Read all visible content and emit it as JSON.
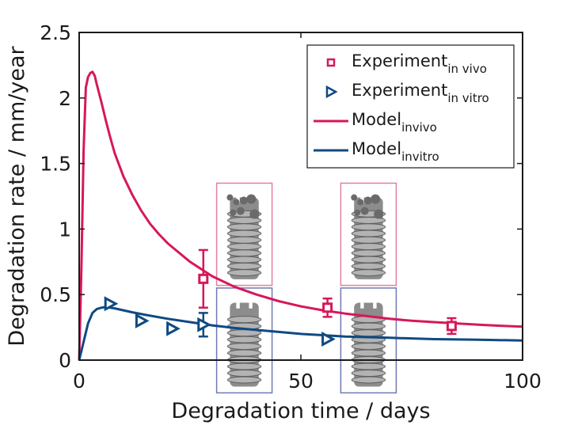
{
  "chart_data": {
    "type": "line",
    "title": "",
    "xlabel": "Degradation time / days",
    "ylabel": "Degradation rate / mm/year",
    "xlim": [
      0,
      100
    ],
    "ylim": [
      0,
      2.5
    ],
    "xticks": [
      0,
      50,
      100
    ],
    "yticks": [
      0,
      0.5,
      1,
      1.5,
      2,
      2.5
    ],
    "xtick_labels": [
      "0",
      "50",
      "100"
    ],
    "ytick_labels": [
      "0",
      "0.5",
      "1",
      "1.5",
      "2",
      "2.5"
    ],
    "grid": false,
    "legend_position": "top-right",
    "colors": {
      "in_vivo": "#d6185a",
      "in_vitro": "#0f4a82",
      "inset_vivo_frame": "#e27fa3",
      "inset_vitro_frame": "#6f79b5"
    },
    "series": [
      {
        "name": "Experiment",
        "name_sub": "in vivo",
        "kind": "scatter",
        "marker": "square",
        "color": "#d6185a",
        "points": [
          {
            "x": 28,
            "y": 0.62,
            "err": 0.22
          },
          {
            "x": 56,
            "y": 0.4,
            "err": 0.07
          },
          {
            "x": 84,
            "y": 0.26,
            "err": 0.06
          }
        ]
      },
      {
        "name": "Experiment",
        "name_sub": "in vitro",
        "kind": "scatter",
        "marker": "triangle-right",
        "color": "#0f4a82",
        "points": [
          {
            "x": 7,
            "y": 0.43
          },
          {
            "x": 14,
            "y": 0.3
          },
          {
            "x": 21,
            "y": 0.24
          },
          {
            "x": 28,
            "y": 0.27,
            "err": 0.09
          },
          {
            "x": 56,
            "y": 0.16
          }
        ]
      },
      {
        "name": "Model",
        "name_sub": "invivo",
        "kind": "line",
        "color": "#d6185a",
        "x": [
          0,
          0.5,
          1,
          1.5,
          2,
          2.5,
          3,
          3.5,
          4,
          5,
          6,
          7,
          8,
          10,
          12,
          14,
          16,
          18,
          20,
          25,
          30,
          35,
          40,
          45,
          50,
          55,
          60,
          65,
          70,
          75,
          80,
          85,
          90,
          95,
          100
        ],
        "y": [
          0,
          0.7,
          1.6,
          2.08,
          2.16,
          2.19,
          2.2,
          2.17,
          2.1,
          1.97,
          1.83,
          1.7,
          1.58,
          1.4,
          1.26,
          1.14,
          1.04,
          0.96,
          0.89,
          0.75,
          0.64,
          0.56,
          0.5,
          0.45,
          0.41,
          0.38,
          0.355,
          0.335,
          0.315,
          0.3,
          0.29,
          0.28,
          0.27,
          0.262,
          0.255
        ]
      },
      {
        "name": "Model",
        "name_sub": "invitro",
        "kind": "line",
        "color": "#0f4a82",
        "x": [
          0,
          1,
          2,
          3,
          4,
          5,
          6,
          7,
          8,
          10,
          12,
          15,
          20,
          25,
          30,
          35,
          40,
          45,
          50,
          55,
          60,
          70,
          80,
          90,
          100
        ],
        "y": [
          0,
          0.14,
          0.28,
          0.36,
          0.39,
          0.4,
          0.405,
          0.4,
          0.395,
          0.38,
          0.365,
          0.345,
          0.315,
          0.29,
          0.265,
          0.245,
          0.23,
          0.215,
          0.2,
          0.19,
          0.18,
          0.17,
          0.16,
          0.155,
          0.15
        ]
      }
    ],
    "insets": [
      {
        "label": "in vivo scaffold",
        "frame": "vivo",
        "x": [
          31,
          43.5
        ],
        "y": [
          0.57,
          1.35
        ]
      },
      {
        "label": "in vivo scaffold",
        "frame": "vivo",
        "x": [
          59,
          71.5
        ],
        "y": [
          0.57,
          1.35
        ]
      },
      {
        "label": "in vitro scaffold",
        "frame": "vitro",
        "x": [
          31,
          43.5
        ],
        "y": [
          -0.25,
          0.55
        ]
      },
      {
        "label": "in vitro scaffold",
        "frame": "vitro",
        "x": [
          59,
          71.5
        ],
        "y": [
          -0.25,
          0.55
        ]
      }
    ]
  }
}
